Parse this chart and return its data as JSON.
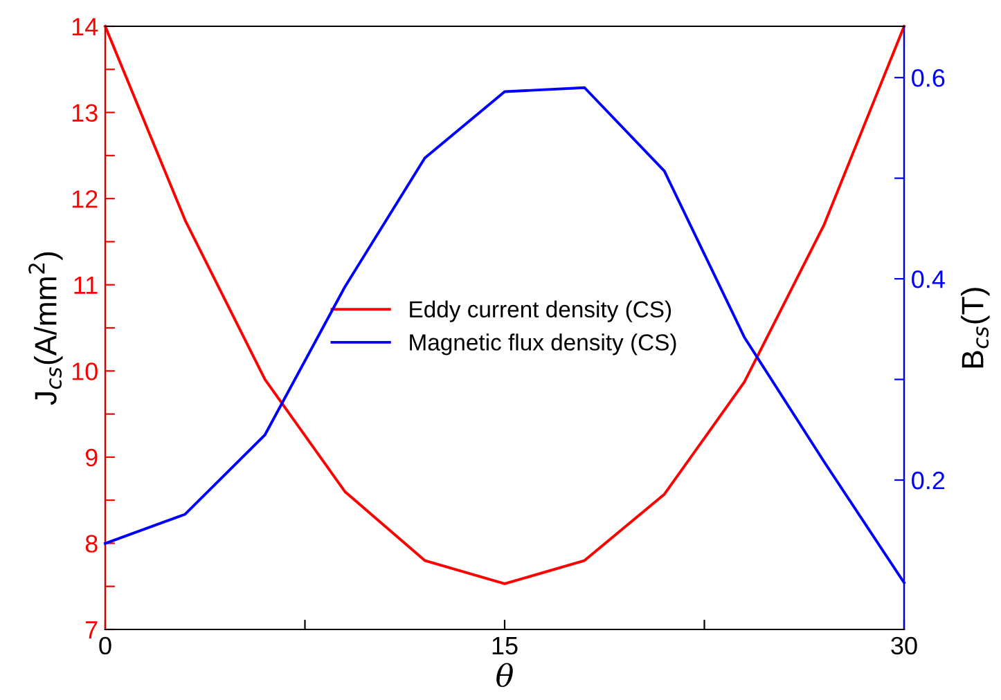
{
  "chart_data": {
    "type": "line",
    "xlabel": "θ",
    "ylabel": "J$_{cs}$(A/mm$^{2}$)",
    "y2label": "B$_{cs}$(T)",
    "x": [
      0,
      3,
      6,
      9,
      12,
      15,
      18,
      21,
      24,
      27,
      30
    ],
    "series": [
      {
        "name": "Eddy current density (CS)",
        "color": "#ff0000",
        "values": [
          14.0,
          11.75,
          9.9,
          8.6,
          7.8,
          7.53,
          7.8,
          8.57,
          9.87,
          11.7,
          14.0
        ]
      },
      {
        "name": "Magnetic flux density (CS)",
        "color": "#0000ff",
        "axis": "y2",
        "values": [
          0.137,
          0.166,
          0.245,
          0.392,
          0.52,
          0.586,
          0.59,
          0.507,
          0.342,
          0.218,
          0.098
        ]
      }
    ],
    "xlim": [
      0,
      30
    ],
    "xticks": [
      0,
      {
        "value": 7.5,
        "label": null
      },
      15,
      {
        "value": 22.5,
        "label": null
      },
      30
    ],
    "ylim": [
      7,
      14
    ],
    "yticks": [
      7,
      {
        "value": 7.5,
        "label": null
      },
      8,
      {
        "value": 8.5,
        "label": null
      },
      9,
      {
        "value": 9.5,
        "label": null
      },
      10,
      {
        "value": 10.5,
        "label": null
      },
      11,
      {
        "value": 11.5,
        "label": null
      },
      12,
      {
        "value": 12.5,
        "label": null
      },
      13,
      {
        "value": 13.5,
        "label": null
      },
      14
    ],
    "y2lim": [
      0.0515,
      0.651
    ],
    "y2ticks": [
      0.2,
      {
        "value": 0.3,
        "label": null
      },
      0.4,
      {
        "value": 0.5,
        "label": null
      },
      0.6
    ],
    "legend": "center",
    "grid": false,
    "marker": "none",
    "line_style": "solid"
  }
}
